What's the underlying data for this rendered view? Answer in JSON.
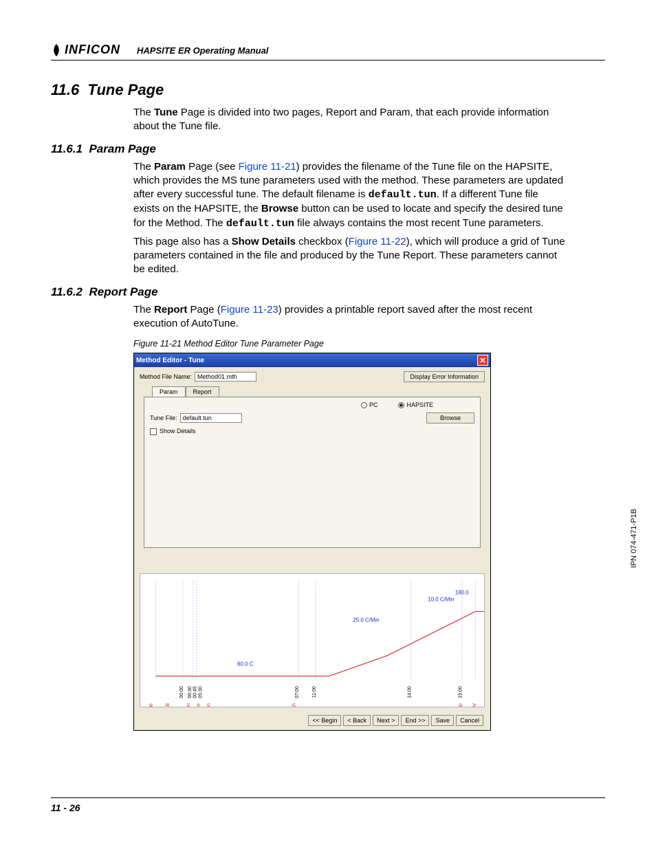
{
  "header": {
    "brand": "INFICON",
    "doc_title": "HAPSITE ER Operating Manual"
  },
  "sections": {
    "s1_num": "11.6",
    "s1_title": "Tune Page",
    "s1_p1a": "The ",
    "s1_p1b": "Tune",
    "s1_p1c": " Page is divided into two pages, Report and Param, that each provide information about the Tune file.",
    "s2_num": "11.6.1",
    "s2_title": "Param Page",
    "s2_p1a": "The ",
    "s2_p1b": "Param",
    "s2_p1c": " Page (see ",
    "s2_p1_link": "Figure 11-21",
    "s2_p1d": ") provides the filename of the Tune file on the HAPSITE, which provides the MS tune parameters used with the method. These parameters are updated after every successful tune. The default filename is ",
    "s2_mono1": "default.tun",
    "s2_p1e": ". If a different Tune file exists on the HAPSITE, the ",
    "s2_p1_browse": "Browse",
    "s2_p1f": " button can be used to locate and specify the desired tune for the Method. The ",
    "s2_mono2": "default.tun",
    "s2_p1g": " file always contains the most recent Tune parameters.",
    "s2_p2a": "This page also has a ",
    "s2_p2b": "Show Details",
    "s2_p2c": " checkbox (",
    "s2_p2_link": "Figure 11-22",
    "s2_p2d": "), which will produce a grid of Tune parameters contained in the file and produced by the Tune Report. These parameters cannot be edited.",
    "s3_num": "11.6.2",
    "s3_title": "Report Page",
    "s3_p1a": "The ",
    "s3_p1b": "Report",
    "s3_p1c": " Page (",
    "s3_p1_link": "Figure 11-23",
    "s3_p1d": ") provides a printable report saved after the most recent execution of AutoTune."
  },
  "figure_caption": "Figure 11-21  Method Editor Tune Parameter Page",
  "window": {
    "title": "Method Editor - Tune",
    "file_label": "Method File Name:",
    "file_value": "Method01.mth",
    "err_button": "Display Error Information",
    "tab_param": "Param",
    "tab_report": "Report",
    "radio_pc": "PC",
    "radio_hapsite": "HAPSITE",
    "tunefile_label": "Tune File:",
    "tunefile_value": "default.tun",
    "browse": "Browse",
    "show_details": "Show Details",
    "buttons": {
      "begin": "<< Begin",
      "back": "< Back",
      "next": "Next >",
      "end": "End >>",
      "save": "Save",
      "cancel": "Cancel"
    }
  },
  "chart": {
    "line_color": "#e03030",
    "grid_color": "#9cb8e8",
    "text_color_blue": "#1030c8",
    "text_color_red": "#d02020",
    "annotations": {
      "y_top_right": "180.0",
      "rate1": "10.0 C/Min",
      "rate2": "25.0 C/Min",
      "baseline": "60.0 C"
    },
    "x_ticks": [
      "00:00",
      "00:30",
      "00:45",
      "05:30",
      "07:00",
      "11:00",
      "14:00",
      "15:00"
    ],
    "events_red": [
      "LinePurge",
      "ConcFill",
      "PreBakeIn",
      "Introduce",
      "Filament On",
      "Backflush",
      "Scan Stop",
      "Standby"
    ],
    "temp_profile": {
      "type": "line",
      "points_x": [
        0,
        60,
        110,
        230,
        255,
        340,
        470,
        490
      ],
      "points_y": [
        150,
        150,
        150,
        150,
        150,
        120,
        55,
        55
      ]
    }
  },
  "footer": {
    "page_num": "11 - 26"
  },
  "side_text": "IPN 074-471-P1B"
}
